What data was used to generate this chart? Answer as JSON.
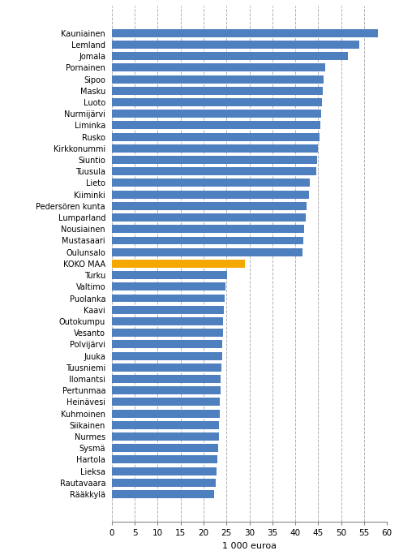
{
  "categories": [
    "Kauniainen",
    "Lemland",
    "Jomala",
    "Pornainen",
    "Sipoo",
    "Masku",
    "Luoto",
    "Nurmijärvi",
    "Liminka",
    "Rusko",
    "Kirkkonummi",
    "Siuntio",
    "Tuusula",
    "Lieto",
    "Kiiminki",
    "Pedersören kunta",
    "Lumparland",
    "Nousiainen",
    "Mustasaari",
    "Oulunsalo",
    "KOKO MAA",
    "Turku",
    "Valtimo",
    "Puolanka",
    "Kaavi",
    "Outokumpu",
    "Vesanto",
    "Polvijärvi",
    "Juuka",
    "Tuusniemi",
    "Ilomantsi",
    "Pertunmaa",
    "Heinävesi",
    "Kuhmoinen",
    "Siikainen",
    "Nurmes",
    "Sysmä",
    "Hartola",
    "Lieksa",
    "Rautavaara",
    "Rääkkylä"
  ],
  "values": [
    58.0,
    54.0,
    51.5,
    46.5,
    46.2,
    46.0,
    45.8,
    45.6,
    45.4,
    45.2,
    45.0,
    44.8,
    44.6,
    43.2,
    43.0,
    42.5,
    42.2,
    42.0,
    41.8,
    41.6,
    29.0,
    25.2,
    24.8,
    24.6,
    24.4,
    24.3,
    24.2,
    24.1,
    24.0,
    23.9,
    23.8,
    23.7,
    23.6,
    23.5,
    23.4,
    23.3,
    23.2,
    23.0,
    22.9,
    22.6,
    22.3
  ],
  "bar_colors_blue": "#4e7fbf",
  "bar_color_gold": "#f5a800",
  "koko_maa_index": 20,
  "xlabel": "1 000 euroa",
  "xlim": [
    0,
    60
  ],
  "xticks": [
    0,
    5,
    10,
    15,
    20,
    25,
    30,
    35,
    40,
    45,
    50,
    55,
    60
  ],
  "background_color": "#ffffff",
  "grid_color": "#b0b0b0"
}
